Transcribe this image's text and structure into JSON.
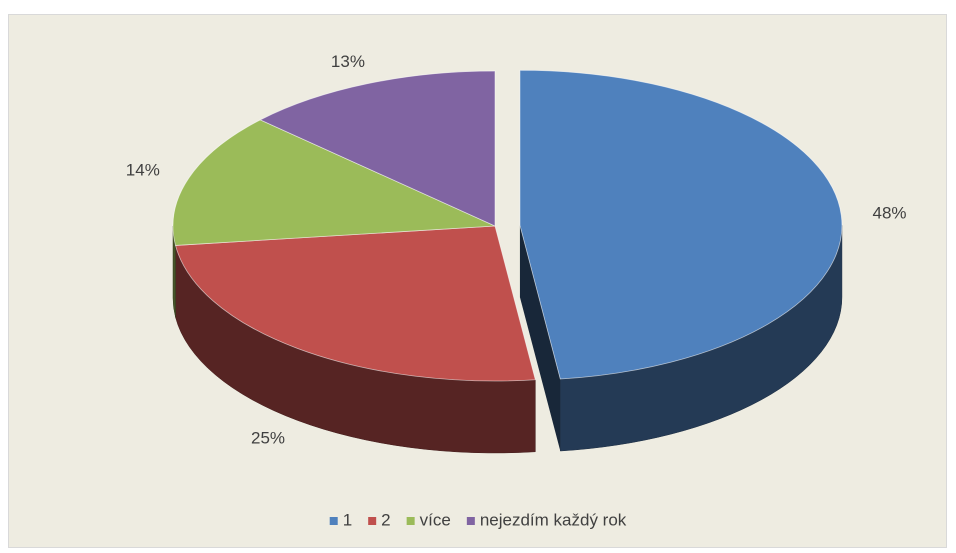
{
  "chart_data": {
    "type": "pie3d",
    "categories": [
      "1",
      "2",
      "více",
      "nejezdím každý rok"
    ],
    "values": [
      48,
      25,
      14,
      13
    ],
    "value_labels": [
      "48%",
      "25%",
      "14%",
      "13%"
    ],
    "colors": [
      "#4f81bd",
      "#c0504d",
      "#9bbb59",
      "#8064a2"
    ],
    "legend": "bottom"
  }
}
